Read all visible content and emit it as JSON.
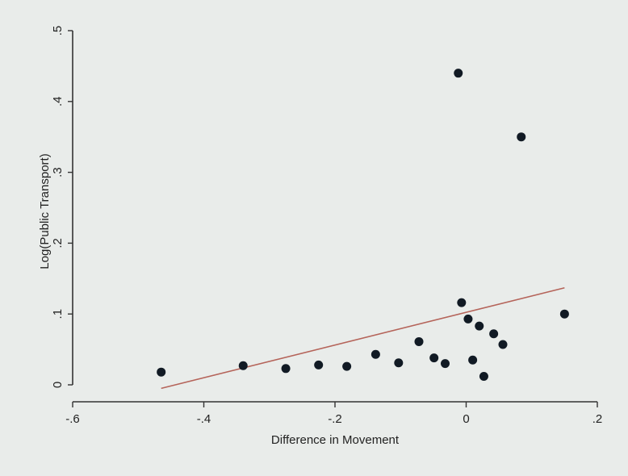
{
  "chart_data": {
    "type": "scatter",
    "title": "",
    "xlabel": "Difference in Movement",
    "ylabel": "Log(Public Transport)",
    "xlim": [
      -0.6,
      0.2
    ],
    "ylim": [
      0,
      0.5
    ],
    "x_ticks": [
      -0.6,
      -0.4,
      -0.2,
      0,
      0.2
    ],
    "x_tick_labels": [
      "-.6",
      "-.4",
      "-.2",
      "0",
      ".2"
    ],
    "y_ticks": [
      0,
      0.1,
      0.2,
      0.3,
      0.4,
      0.5
    ],
    "y_tick_labels": [
      "0",
      ".1",
      ".2",
      ".3",
      ".4",
      ".5"
    ],
    "grid": false,
    "legend": "none",
    "colors": {
      "points": "#111a24",
      "fit_line": "#b5645a",
      "axes": "#333333",
      "background": "#e9ecea"
    },
    "points": [
      {
        "x": -0.465,
        "y": 0.018
      },
      {
        "x": -0.34,
        "y": 0.027
      },
      {
        "x": -0.275,
        "y": 0.023
      },
      {
        "x": -0.225,
        "y": 0.028
      },
      {
        "x": -0.182,
        "y": 0.026
      },
      {
        "x": -0.138,
        "y": 0.043
      },
      {
        "x": -0.103,
        "y": 0.031
      },
      {
        "x": -0.072,
        "y": 0.061
      },
      {
        "x": -0.049,
        "y": 0.038
      },
      {
        "x": -0.032,
        "y": 0.03
      },
      {
        "x": -0.012,
        "y": 0.44
      },
      {
        "x": -0.007,
        "y": 0.116
      },
      {
        "x": 0.003,
        "y": 0.093
      },
      {
        "x": 0.01,
        "y": 0.035
      },
      {
        "x": 0.02,
        "y": 0.083
      },
      {
        "x": 0.027,
        "y": 0.012
      },
      {
        "x": 0.042,
        "y": 0.072
      },
      {
        "x": 0.056,
        "y": 0.057
      },
      {
        "x": 0.084,
        "y": 0.35
      },
      {
        "x": 0.15,
        "y": 0.1
      }
    ],
    "fit_line": {
      "x": [
        -0.465,
        0.15
      ],
      "y": [
        -0.005,
        0.137
      ]
    }
  }
}
